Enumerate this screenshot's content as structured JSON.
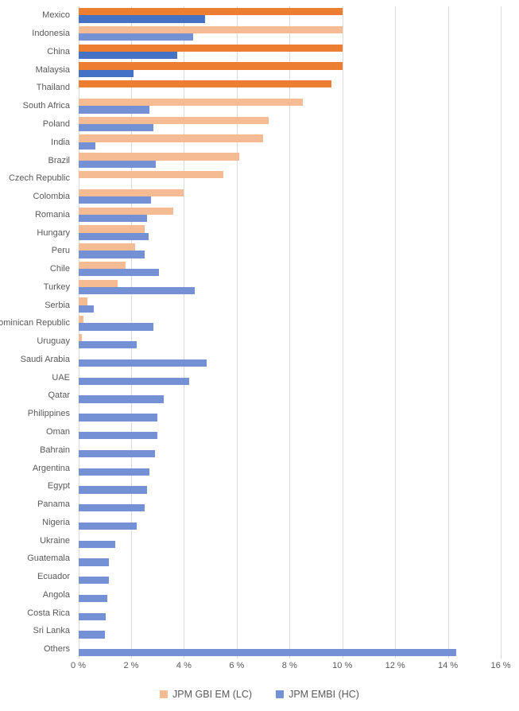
{
  "chart_data": {
    "type": "bar",
    "orientation": "horizontal",
    "title": "",
    "xlabel": "",
    "ylabel": "",
    "x_axis": {
      "min": 0,
      "max": 16,
      "step": 2,
      "unit": "%",
      "ticks": [
        "0 %",
        "2 %",
        "4 %",
        "6 %",
        "8 %",
        "10 %",
        "12 %",
        "14 %",
        "16 %"
      ]
    },
    "grid": true,
    "legend_position": "bottom",
    "series": [
      {
        "name": "JPM GBI EM (LC)",
        "key": "gbi_lc"
      },
      {
        "name": "JPM EMBI (HC)",
        "key": "embi_hc"
      }
    ],
    "rows": [
      {
        "country": "Mexico",
        "gbi_lc": 10.0,
        "embi_hc": 4.8,
        "highlighted": true
      },
      {
        "country": "Indonesia",
        "gbi_lc": 10.0,
        "embi_hc": 4.35,
        "highlighted": false
      },
      {
        "country": "China",
        "gbi_lc": 10.0,
        "embi_hc": 3.75,
        "highlighted": true
      },
      {
        "country": "Malaysia",
        "gbi_lc": 10.0,
        "embi_hc": 2.1,
        "highlighted": true
      },
      {
        "country": "Thailand",
        "gbi_lc": 9.6,
        "embi_hc": null,
        "highlighted": true
      },
      {
        "country": "South Africa",
        "gbi_lc": 8.5,
        "embi_hc": 2.7,
        "highlighted": false
      },
      {
        "country": "Poland",
        "gbi_lc": 7.2,
        "embi_hc": 2.85,
        "highlighted": false
      },
      {
        "country": "India",
        "gbi_lc": 7.0,
        "embi_hc": 0.65,
        "highlighted": false
      },
      {
        "country": "Brazil",
        "gbi_lc": 6.1,
        "embi_hc": 2.95,
        "highlighted": false
      },
      {
        "country": "Czech Republic",
        "gbi_lc": 5.5,
        "embi_hc": null,
        "highlighted": false
      },
      {
        "country": "Colombia",
        "gbi_lc": 4.0,
        "embi_hc": 2.75,
        "highlighted": false
      },
      {
        "country": "Romania",
        "gbi_lc": 3.6,
        "embi_hc": 2.6,
        "highlighted": false
      },
      {
        "country": "Hungary",
        "gbi_lc": 2.5,
        "embi_hc": 2.65,
        "highlighted": false
      },
      {
        "country": "Peru",
        "gbi_lc": 2.15,
        "embi_hc": 2.5,
        "highlighted": false
      },
      {
        "country": "Chile",
        "gbi_lc": 1.8,
        "embi_hc": 3.05,
        "highlighted": false
      },
      {
        "country": "Turkey",
        "gbi_lc": 1.5,
        "embi_hc": 4.4,
        "highlighted": false
      },
      {
        "country": "Serbia",
        "gbi_lc": 0.35,
        "embi_hc": 0.6,
        "highlighted": false
      },
      {
        "country": "Dominican Republic",
        "gbi_lc": 0.2,
        "embi_hc": 2.85,
        "highlighted": false
      },
      {
        "country": "Uruguay",
        "gbi_lc": 0.15,
        "embi_hc": 2.2,
        "highlighted": false
      },
      {
        "country": "Saudi Arabia",
        "gbi_lc": null,
        "embi_hc": 4.85,
        "highlighted": false
      },
      {
        "country": "UAE",
        "gbi_lc": null,
        "embi_hc": 4.2,
        "highlighted": false
      },
      {
        "country": "Qatar",
        "gbi_lc": null,
        "embi_hc": 3.25,
        "highlighted": false
      },
      {
        "country": "Philippines",
        "gbi_lc": null,
        "embi_hc": 3.0,
        "highlighted": false
      },
      {
        "country": "Oman",
        "gbi_lc": null,
        "embi_hc": 3.0,
        "highlighted": false
      },
      {
        "country": "Bahrain",
        "gbi_lc": null,
        "embi_hc": 2.9,
        "highlighted": false
      },
      {
        "country": "Argentina",
        "gbi_lc": null,
        "embi_hc": 2.7,
        "highlighted": false
      },
      {
        "country": "Egypt",
        "gbi_lc": null,
        "embi_hc": 2.6,
        "highlighted": false
      },
      {
        "country": "Panama",
        "gbi_lc": null,
        "embi_hc": 2.5,
        "highlighted": false
      },
      {
        "country": "Nigeria",
        "gbi_lc": null,
        "embi_hc": 2.2,
        "highlighted": false
      },
      {
        "country": "Ukraine",
        "gbi_lc": null,
        "embi_hc": 1.4,
        "highlighted": false
      },
      {
        "country": "Guatemala",
        "gbi_lc": null,
        "embi_hc": 1.15,
        "highlighted": false
      },
      {
        "country": "Ecuador",
        "gbi_lc": null,
        "embi_hc": 1.15,
        "highlighted": false
      },
      {
        "country": "Angola",
        "gbi_lc": null,
        "embi_hc": 1.1,
        "highlighted": false
      },
      {
        "country": "Costa Rica",
        "gbi_lc": null,
        "embi_hc": 1.05,
        "highlighted": false
      },
      {
        "country": "Sri Lanka",
        "gbi_lc": null,
        "embi_hc": 1.0,
        "highlighted": false
      },
      {
        "country": "Others",
        "gbi_lc": null,
        "embi_hc": 14.3,
        "highlighted": false
      }
    ],
    "colors": {
      "gbi_normal": "#F5BB93",
      "gbi_highlight": "#ED7D31",
      "embi_normal": "#7491D5",
      "embi_highlight": "#4472C4",
      "gridline": "#D9D9D9",
      "axis_text": "#595959"
    }
  },
  "legend": {
    "gbi_label": "JPM GBI EM (LC)",
    "embi_label": "JPM EMBI (HC)"
  }
}
